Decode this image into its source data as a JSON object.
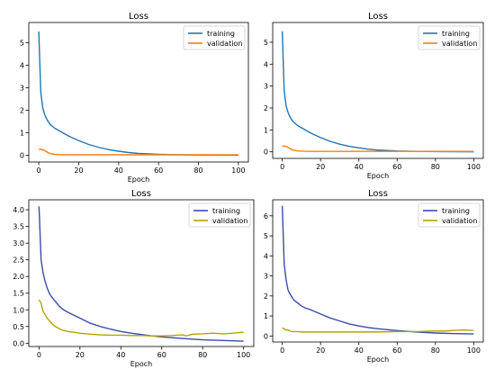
{
  "chart_data": [
    {
      "type": "line",
      "title": "Loss",
      "xlabel": "Epoch",
      "ylabel": "",
      "xlim": [
        -5,
        105
      ],
      "ylim": [
        -0.3,
        5.9
      ],
      "xticks": [
        0,
        20,
        40,
        60,
        80,
        100
      ],
      "yticks": [
        0,
        1,
        2,
        3,
        4,
        5
      ],
      "ytick_labels": [
        "0",
        "1",
        "2",
        "3",
        "4",
        "5"
      ],
      "legend_position": "top-right",
      "grid": false,
      "series": [
        {
          "name": "training",
          "color": "#1f77b4",
          "x": [
            0,
            1,
            2,
            3,
            4,
            5,
            6,
            8,
            10,
            12,
            15,
            20,
            25,
            30,
            35,
            40,
            45,
            50,
            60,
            70,
            80,
            90,
            100
          ],
          "y": [
            5.5,
            2.8,
            2.1,
            1.8,
            1.6,
            1.45,
            1.35,
            1.2,
            1.1,
            1.0,
            0.85,
            0.65,
            0.48,
            0.35,
            0.25,
            0.18,
            0.12,
            0.08,
            0.04,
            0.02,
            0.01,
            0.005,
            0.0
          ]
        },
        {
          "name": "validation",
          "color": "#ff7f0e",
          "x": [
            0,
            1,
            2,
            3,
            4,
            5,
            6,
            8,
            10,
            15,
            20,
            30,
            40,
            50,
            60,
            70,
            80,
            90,
            100
          ],
          "y": [
            0.27,
            0.26,
            0.25,
            0.2,
            0.15,
            0.1,
            0.07,
            0.04,
            0.03,
            0.02,
            0.02,
            0.02,
            0.02,
            0.02,
            0.02,
            0.02,
            0.02,
            0.02,
            0.02
          ]
        }
      ]
    },
    {
      "type": "line",
      "title": "Loss",
      "xlabel": "Epoch",
      "ylabel": "",
      "xlim": [
        -5,
        105
      ],
      "ylim": [
        -0.3,
        5.9
      ],
      "xticks": [
        0,
        20,
        40,
        60,
        80,
        100
      ],
      "yticks": [
        0,
        1,
        2,
        3,
        4,
        5
      ],
      "ytick_labels": [
        "0",
        "1",
        "2",
        "3",
        "4",
        "5"
      ],
      "legend_position": "top-right",
      "grid": false,
      "series": [
        {
          "name": "training",
          "color": "#1f77b4",
          "x": [
            0,
            1,
            2,
            3,
            4,
            5,
            6,
            8,
            10,
            12,
            15,
            20,
            25,
            30,
            35,
            40,
            45,
            50,
            60,
            70,
            80,
            90,
            100
          ],
          "y": [
            5.5,
            2.8,
            2.1,
            1.8,
            1.6,
            1.45,
            1.35,
            1.2,
            1.1,
            1.0,
            0.85,
            0.65,
            0.48,
            0.35,
            0.25,
            0.18,
            0.12,
            0.08,
            0.04,
            0.02,
            0.01,
            0.005,
            0.0
          ]
        },
        {
          "name": "validation",
          "color": "#ff7f0e",
          "x": [
            0,
            1,
            2,
            3,
            4,
            5,
            6,
            8,
            10,
            15,
            20,
            30,
            40,
            50,
            60,
            70,
            80,
            90,
            100
          ],
          "y": [
            0.27,
            0.26,
            0.25,
            0.2,
            0.15,
            0.1,
            0.07,
            0.04,
            0.03,
            0.02,
            0.02,
            0.02,
            0.02,
            0.02,
            0.02,
            0.02,
            0.02,
            0.02,
            0.02
          ]
        }
      ]
    },
    {
      "type": "line",
      "title": "Loss",
      "xlabel": "Epoch",
      "ylabel": "",
      "xlim": [
        -5,
        105
      ],
      "ylim": [
        -0.1,
        4.3
      ],
      "xticks": [
        0,
        20,
        40,
        60,
        80,
        100
      ],
      "yticks": [
        0,
        0.5,
        1,
        1.5,
        2,
        2.5,
        3,
        3.5,
        4
      ],
      "ytick_labels": [
        "0.0",
        "0.5",
        "1.0",
        "1.5",
        "2.0",
        "2.5",
        "3.0",
        "3.5",
        "4.0"
      ],
      "legend_position": "top-right",
      "grid": false,
      "series": [
        {
          "name": "training",
          "color": "#3b4ba8",
          "x": [
            0,
            1,
            2,
            3,
            4,
            5,
            6,
            8,
            10,
            12,
            15,
            20,
            25,
            30,
            35,
            40,
            45,
            50,
            55,
            60,
            70,
            80,
            90,
            100
          ],
          "y": [
            4.1,
            2.5,
            2.1,
            1.85,
            1.65,
            1.5,
            1.4,
            1.25,
            1.1,
            1.0,
            0.9,
            0.75,
            0.6,
            0.5,
            0.42,
            0.35,
            0.3,
            0.26,
            0.22,
            0.19,
            0.14,
            0.1,
            0.08,
            0.06
          ]
        },
        {
          "name": "validation",
          "color": "#b5a200",
          "x": [
            0,
            1,
            2,
            3,
            4,
            5,
            6,
            8,
            10,
            12,
            15,
            18,
            20,
            25,
            30,
            35,
            40,
            45,
            50,
            55,
            60,
            65,
            70,
            72,
            75,
            80,
            85,
            90,
            95,
            100
          ],
          "y": [
            1.3,
            1.2,
            0.95,
            0.85,
            0.75,
            0.68,
            0.6,
            0.5,
            0.43,
            0.38,
            0.34,
            0.32,
            0.3,
            0.27,
            0.25,
            0.24,
            0.24,
            0.23,
            0.23,
            0.22,
            0.22,
            0.23,
            0.25,
            0.22,
            0.27,
            0.28,
            0.3,
            0.28,
            0.3,
            0.33
          ]
        }
      ]
    },
    {
      "type": "line",
      "title": "Loss",
      "xlabel": "Epoch",
      "ylabel": "",
      "xlim": [
        -5,
        105
      ],
      "ylim": [
        -0.3,
        6.8
      ],
      "xticks": [
        0,
        20,
        40,
        60,
        80,
        100
      ],
      "yticks": [
        0,
        1,
        2,
        3,
        4,
        5,
        6
      ],
      "ytick_labels": [
        "0",
        "1",
        "2",
        "3",
        "4",
        "5",
        "6"
      ],
      "legend_position": "top-right",
      "grid": false,
      "series": [
        {
          "name": "training",
          "color": "#3b4ba8",
          "x": [
            0,
            1,
            2,
            3,
            4,
            5,
            6,
            8,
            10,
            12,
            15,
            20,
            25,
            30,
            35,
            40,
            45,
            50,
            60,
            70,
            80,
            90,
            100
          ],
          "y": [
            6.5,
            3.6,
            2.8,
            2.3,
            2.1,
            1.95,
            1.8,
            1.65,
            1.5,
            1.4,
            1.3,
            1.1,
            0.9,
            0.75,
            0.6,
            0.5,
            0.42,
            0.36,
            0.27,
            0.2,
            0.15,
            0.12,
            0.1
          ]
        },
        {
          "name": "validation",
          "color": "#b5a200",
          "x": [
            0,
            1,
            2,
            3,
            4,
            5,
            6,
            8,
            10,
            15,
            20,
            30,
            40,
            50,
            60,
            70,
            80,
            85,
            90,
            95,
            100
          ],
          "y": [
            0.4,
            0.35,
            0.3,
            0.3,
            0.25,
            0.22,
            0.22,
            0.22,
            0.2,
            0.2,
            0.2,
            0.2,
            0.2,
            0.2,
            0.22,
            0.22,
            0.25,
            0.25,
            0.28,
            0.3,
            0.28
          ]
        }
      ]
    }
  ]
}
